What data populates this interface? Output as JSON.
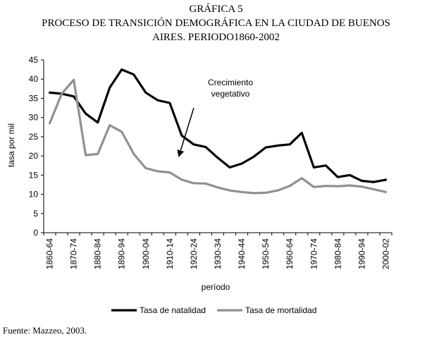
{
  "title_lines": [
    "GRÁFICA 5",
    "PROCESO DE TRANSICIÓN DEMOGRÁFICA EN LA CIUDAD DE BUENOS",
    "AIRES. PERIODO1860-2002"
  ],
  "source": "Fuente: Mazzeo, 2003.",
  "chart_data": {
    "type": "line",
    "title": "PROCESO DE TRANSICIÓN DEMOGRÁFICA EN LA CIUDAD DE BUENOS AIRES. PERIODO1860-2002",
    "xlabel": "período",
    "ylabel": "tasa por mil",
    "ylim": [
      0,
      45
    ],
    "yticks": [
      0,
      5,
      10,
      15,
      20,
      25,
      30,
      35,
      40,
      45
    ],
    "x_tick_labels": [
      "1860-64",
      "1870-74",
      "1880-84",
      "1890-94",
      "1900-04",
      "1910-14",
      "1920-24",
      "1930-34",
      "1940-44",
      "1950-54",
      "1960-64",
      "1970-74",
      "1980-84",
      "1990-94",
      "2000-02"
    ],
    "categories": [
      "1860-64",
      "1865-69",
      "1870-74",
      "1875-79",
      "1880-84",
      "1885-89",
      "1890-94",
      "1895-99",
      "1900-04",
      "1905-09",
      "1910-14",
      "1915-19",
      "1920-24",
      "1925-29",
      "1930-34",
      "1935-39",
      "1940-44",
      "1945-49",
      "1950-54",
      "1955-59",
      "1960-64",
      "1965-69",
      "1970-74",
      "1975-79",
      "1980-84",
      "1985-89",
      "1990-94",
      "1995-99",
      "2000-02"
    ],
    "series": [
      {
        "name": "Tasa de natalidad",
        "color": "#000000",
        "values": [
          36.5,
          36.2,
          35.5,
          31.0,
          28.7,
          37.8,
          42.5,
          41.2,
          36.5,
          34.5,
          33.8,
          25.3,
          23.0,
          22.3,
          19.5,
          17.0,
          18.0,
          19.8,
          22.2,
          22.7,
          23.0,
          26.0,
          17.0,
          17.5,
          14.5,
          15.0,
          13.5,
          13.2,
          13.8
        ]
      },
      {
        "name": "Tasa de mortalidad",
        "color": "#909090",
        "values": [
          28.5,
          36.2,
          39.8,
          20.2,
          20.5,
          28.0,
          26.3,
          20.5,
          16.8,
          16.0,
          15.7,
          13.8,
          12.9,
          12.8,
          11.8,
          11.0,
          10.6,
          10.3,
          10.4,
          11.0,
          12.2,
          14.2,
          11.9,
          12.2,
          12.1,
          12.3,
          12.0,
          11.3,
          10.6
        ]
      }
    ],
    "annotation": {
      "lines": [
        "Crecimiento",
        "vegetativo"
      ],
      "arrow_from": [
        "1920-24",
        32.5
      ],
      "arrow_to": [
        "1915-19",
        20.0
      ]
    },
    "grid": false,
    "legend_position": "bottom"
  }
}
